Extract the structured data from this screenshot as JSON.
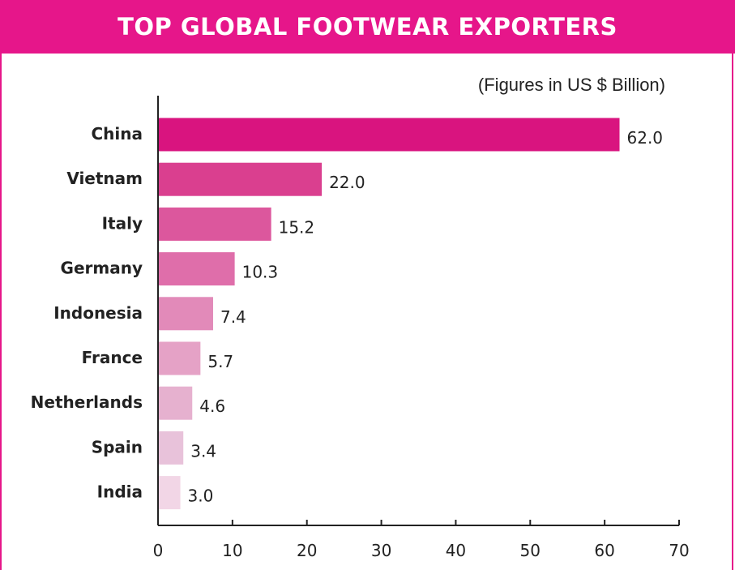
{
  "header": {
    "title": "TOP GLOBAL FOOTWEAR EXPORTERS"
  },
  "note": "(Figures in US $ Billion)",
  "chart_data": {
    "type": "bar",
    "orientation": "horizontal",
    "title": "TOP GLOBAL FOOTWEAR EXPORTERS",
    "unit_note": "(Figures in US $ Billion)",
    "categories": [
      "China",
      "Vietnam",
      "Italy",
      "Germany",
      "Indonesia",
      "France",
      "Netherlands",
      "Spain",
      "India"
    ],
    "values": [
      62.0,
      22.0,
      15.2,
      10.3,
      7.4,
      5.7,
      4.6,
      3.4,
      3.0
    ],
    "value_labels": [
      "62.0",
      "22.0",
      "15.2",
      "10.3",
      "7.4",
      "5.7",
      "4.6",
      "3.4",
      "3.0"
    ],
    "bar_colors": [
      "#d9147f",
      "#da3f8f",
      "#dc579d",
      "#df6eaa",
      "#e28ab9",
      "#e5a2c6",
      "#e6b1cf",
      "#e8c2da",
      "#f2d6e6"
    ],
    "xlim": [
      0,
      70
    ],
    "xticks": [
      0,
      10,
      20,
      30,
      40,
      50,
      60,
      70
    ],
    "xlabel": "",
    "ylabel": "",
    "grid": false,
    "legend": "none"
  }
}
